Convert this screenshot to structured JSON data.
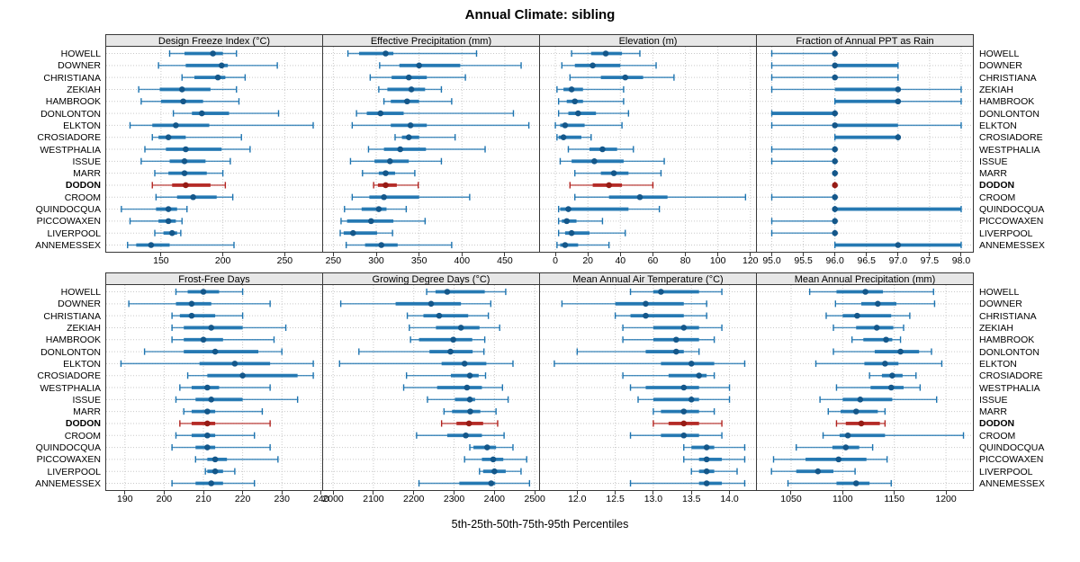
{
  "title": "Annual Climate: sibling",
  "caption": "5th-25th-50th-75th-95th Percentiles",
  "percentile_labels": [
    "5th",
    "25th",
    "50th",
    "75th",
    "95th"
  ],
  "sites": [
    "HOWELL",
    "DOWNER",
    "CHRISTIANA",
    "ZEKIAH",
    "HAMBROOK",
    "DONLONTON",
    "ELKTON",
    "CROSIADORE",
    "WESTPHALIA",
    "ISSUE",
    "MARR",
    "DODON",
    "CROOM",
    "QUINDOCQUA",
    "PICCOWAXEN",
    "LIVERPOOL",
    "ANNEMESSEX"
  ],
  "highlight_site": "DODON",
  "colors": {
    "series": "#1d74b0",
    "series_dot": "#14578a",
    "highlight": "#b2231f",
    "highlight_dot": "#961c16",
    "grid": "#c9c9c9",
    "strip_bg": "#e7e7e7",
    "panel_border": "#383838"
  },
  "chart_data": {
    "type": "dotplot-interval",
    "note": "Each row shows 5th-25th-50th-75th-95th percentiles; thin line = 5th-95th, thick line = 25th-75th, dot = median",
    "layout": {
      "rows": 2,
      "cols": 4,
      "row_labels_both_sides": true,
      "grid": "dotted"
    },
    "panels": [
      {
        "title": "Design Freeze Index (°C)",
        "xlim": [
          105,
          281
        ],
        "ticks": [
          150,
          200,
          250
        ],
        "tick_labels": [
          "150",
          "200",
          "250"
        ],
        "values": [
          [
            157,
            169,
            192,
            200,
            211
          ],
          [
            148,
            170,
            199,
            204,
            244
          ],
          [
            167,
            177,
            196,
            202,
            218
          ],
          [
            132,
            149,
            167,
            190,
            211
          ],
          [
            134,
            150,
            168,
            184,
            213
          ],
          [
            160,
            175,
            183,
            205,
            245
          ],
          [
            125,
            143,
            162,
            189,
            273
          ],
          [
            143,
            148,
            156,
            170,
            215
          ],
          [
            137,
            154,
            170,
            199,
            222
          ],
          [
            134,
            157,
            169,
            186,
            206
          ],
          [
            145,
            156,
            169,
            187,
            200
          ],
          [
            143,
            159,
            170,
            190,
            202
          ],
          [
            146,
            163,
            176,
            195,
            208
          ],
          [
            118,
            146,
            156,
            163,
            171
          ],
          [
            125,
            148,
            156,
            162,
            167
          ],
          [
            145,
            152,
            159,
            163,
            166
          ],
          [
            123,
            130,
            142,
            157,
            209
          ]
        ]
      },
      {
        "title": "Effective Precipitation (mm)",
        "xlim": [
          237,
          491
        ],
        "ticks": [
          250,
          300,
          350,
          400,
          450
        ],
        "tick_labels": [
          "250",
          "300",
          "350",
          "400",
          "450"
        ],
        "values": [
          [
            267,
            280,
            311,
            320,
            417
          ],
          [
            304,
            327,
            350,
            398,
            469
          ],
          [
            293,
            318,
            338,
            359,
            404
          ],
          [
            303,
            313,
            341,
            357,
            376
          ],
          [
            309,
            317,
            336,
            350,
            388
          ],
          [
            277,
            289,
            305,
            332,
            460
          ],
          [
            272,
            317,
            340,
            359,
            478
          ],
          [
            322,
            330,
            338,
            350,
            392
          ],
          [
            291,
            309,
            328,
            358,
            427
          ],
          [
            270,
            298,
            316,
            338,
            376
          ],
          [
            284,
            303,
            311,
            322,
            345
          ],
          [
            297,
            302,
            311,
            324,
            349
          ],
          [
            272,
            292,
            309,
            350,
            409
          ],
          [
            263,
            283,
            303,
            312,
            335
          ],
          [
            259,
            266,
            294,
            320,
            357
          ],
          [
            258,
            262,
            273,
            301,
            319
          ],
          [
            265,
            287,
            306,
            325,
            388
          ]
        ]
      },
      {
        "title": "Elevation (m)",
        "xlim": [
          -10,
          124
        ],
        "ticks": [
          0,
          20,
          40,
          60,
          80,
          100,
          120
        ],
        "tick_labels": [
          "0",
          "20",
          "40",
          "60",
          "80",
          "100",
          "120"
        ],
        "values": [
          [
            10,
            22,
            31,
            41,
            52
          ],
          [
            4,
            12,
            23,
            40,
            62
          ],
          [
            9,
            28,
            43,
            54,
            73
          ],
          [
            1,
            5,
            10,
            17,
            42
          ],
          [
            2,
            7,
            12,
            17,
            42
          ],
          [
            2,
            8,
            14,
            25,
            45
          ],
          [
            0,
            3,
            6,
            18,
            41
          ],
          [
            1,
            2,
            5,
            16,
            22
          ],
          [
            8,
            21,
            29,
            38,
            48
          ],
          [
            3,
            10,
            24,
            42,
            67
          ],
          [
            12,
            28,
            36,
            45,
            65
          ],
          [
            9,
            23,
            33,
            41,
            60
          ],
          [
            12,
            33,
            52,
            69,
            117
          ],
          [
            2,
            3,
            8,
            45,
            64
          ],
          [
            2,
            4,
            7,
            13,
            29
          ],
          [
            2,
            6,
            10,
            21,
            43
          ],
          [
            1,
            3,
            6,
            14,
            33
          ]
        ]
      },
      {
        "title": "Fraction of Annual PPT as Rain",
        "xlim": [
          94.75,
          98.2
        ],
        "ticks": [
          95.0,
          95.5,
          96.0,
          96.5,
          97.0,
          97.5,
          98.0
        ],
        "tick_labels": [
          "95.0",
          "95.5",
          "96.0",
          "96.5",
          "97.0",
          "97.5",
          "98.0"
        ],
        "values": [
          [
            95,
            96,
            96,
            96,
            96
          ],
          [
            95,
            96,
            96,
            97,
            97
          ],
          [
            95,
            96,
            96,
            96,
            97
          ],
          [
            95,
            96,
            97,
            97,
            98
          ],
          [
            96,
            96,
            97,
            97,
            98
          ],
          [
            95,
            95,
            96,
            96,
            96
          ],
          [
            95,
            96,
            96,
            97,
            98
          ],
          [
            96,
            96,
            97,
            97,
            97
          ],
          [
            95,
            96,
            96,
            96,
            96
          ],
          [
            95,
            96,
            96,
            96,
            96
          ],
          [
            96,
            96,
            96,
            96,
            96
          ],
          [
            96,
            96,
            96,
            96,
            96
          ],
          [
            95,
            96,
            96,
            96,
            96
          ],
          [
            96,
            96,
            96,
            98,
            98
          ],
          [
            95,
            96,
            96,
            96,
            96
          ],
          [
            95,
            96,
            96,
            96,
            96
          ],
          [
            96,
            96,
            97,
            98,
            98
          ]
        ]
      },
      {
        "title": "Frost-Free Days",
        "xlim": [
          185,
          240.5
        ],
        "ticks": [
          190,
          200,
          210,
          220,
          230,
          240
        ],
        "tick_labels": [
          "190",
          "200",
          "210",
          "220",
          "230",
          "240"
        ],
        "values": [
          [
            203,
            206,
            210,
            214,
            220
          ],
          [
            191,
            203,
            207,
            212,
            227
          ],
          [
            202,
            204,
            207,
            213,
            220
          ],
          [
            202,
            205,
            212,
            220,
            231
          ],
          [
            202,
            205,
            210,
            215,
            228
          ],
          [
            195,
            205,
            213,
            224,
            230
          ],
          [
            189,
            209,
            218,
            227,
            238
          ],
          [
            206,
            211,
            220,
            234,
            238
          ],
          [
            204,
            207,
            211,
            214,
            227
          ],
          [
            203,
            208,
            212,
            220,
            234
          ],
          [
            205,
            207,
            211,
            213,
            225
          ],
          [
            204,
            207,
            211,
            213,
            227
          ],
          [
            203,
            207,
            211,
            213,
            223
          ],
          [
            202,
            208,
            211,
            213,
            227
          ],
          [
            208,
            211,
            213,
            216,
            229
          ],
          [
            210.5,
            211,
            213,
            215,
            218
          ],
          [
            202,
            208,
            212,
            215,
            223
          ]
        ]
      },
      {
        "title": "Growing Degree Days (°C)",
        "xlim": [
          1973,
          2513
        ],
        "ticks": [
          2000,
          2100,
          2200,
          2300,
          2400,
          2500
        ],
        "tick_labels": [
          "2000",
          "2100",
          "2200",
          "2300",
          "2400",
          "2500"
        ],
        "values": [
          [
            2232,
            2254,
            2283,
            2376,
            2428
          ],
          [
            2019,
            2155,
            2243,
            2317,
            2391
          ],
          [
            2184,
            2224,
            2263,
            2335,
            2385
          ],
          [
            2189,
            2255,
            2317,
            2363,
            2413
          ],
          [
            2192,
            2213,
            2298,
            2345,
            2376
          ],
          [
            2064,
            2239,
            2291,
            2346,
            2374
          ],
          [
            2016,
            2269,
            2326,
            2380,
            2446
          ],
          [
            2182,
            2292,
            2339,
            2361,
            2378
          ],
          [
            2175,
            2258,
            2332,
            2369,
            2420
          ],
          [
            2234,
            2302,
            2339,
            2352,
            2434
          ],
          [
            2275,
            2295,
            2340,
            2365,
            2404
          ],
          [
            2269,
            2306,
            2337,
            2372,
            2408
          ],
          [
            2207,
            2283,
            2329,
            2369,
            2424
          ],
          [
            2339,
            2348,
            2382,
            2404,
            2446
          ],
          [
            2326,
            2369,
            2397,
            2422,
            2480
          ],
          [
            2363,
            2372,
            2400,
            2428,
            2466
          ],
          [
            2213,
            2313,
            2392,
            2402,
            2487
          ]
        ]
      },
      {
        "title": "Mean Annual Air Temperature (°C)",
        "xlim": [
          11.5,
          14.36
        ],
        "ticks": [
          12.0,
          12.5,
          13.0,
          13.5,
          14.0
        ],
        "tick_labels": [
          "12.0",
          "12.5",
          "13.0",
          "13.5",
          "14.0"
        ],
        "values": [
          [
            12.7,
            13.0,
            13.1,
            13.6,
            13.9
          ],
          [
            11.8,
            12.5,
            12.9,
            13.4,
            13.7
          ],
          [
            12.5,
            12.7,
            12.9,
            13.4,
            13.7
          ],
          [
            12.6,
            13.0,
            13.4,
            13.6,
            13.9
          ],
          [
            12.6,
            13.0,
            13.3,
            13.6,
            13.8
          ],
          [
            12.0,
            12.9,
            13.3,
            13.4,
            13.6
          ],
          [
            11.7,
            13.1,
            13.5,
            13.8,
            14.2
          ],
          [
            12.6,
            13.2,
            13.6,
            13.7,
            13.8
          ],
          [
            12.7,
            12.9,
            13.4,
            13.6,
            14.0
          ],
          [
            12.8,
            13.0,
            13.5,
            13.6,
            14.0
          ],
          [
            13.0,
            13.1,
            13.4,
            13.6,
            13.8
          ],
          [
            13.0,
            13.2,
            13.4,
            13.6,
            13.9
          ],
          [
            12.7,
            13.1,
            13.4,
            13.6,
            13.9
          ],
          [
            13.4,
            13.5,
            13.7,
            13.8,
            14.2
          ],
          [
            13.4,
            13.6,
            13.7,
            13.9,
            14.2
          ],
          [
            13.5,
            13.6,
            13.7,
            13.8,
            14.1
          ],
          [
            12.7,
            13.6,
            13.7,
            13.9,
            14.2
          ]
        ]
      },
      {
        "title": "Mean Annual Precipitation (mm)",
        "xlim": [
          1016,
          1227
        ],
        "ticks": [
          1050,
          1100,
          1150,
          1200
        ],
        "tick_labels": [
          "1050",
          "1100",
          "1150",
          "1200"
        ],
        "values": [
          [
            1068,
            1094,
            1122,
            1139,
            1188
          ],
          [
            1093,
            1118,
            1134,
            1152,
            1189
          ],
          [
            1084,
            1100,
            1114,
            1147,
            1165
          ],
          [
            1091,
            1113,
            1133,
            1149,
            1159
          ],
          [
            1109,
            1120,
            1142,
            1148,
            1156
          ],
          [
            1091,
            1131,
            1156,
            1174,
            1186
          ],
          [
            1074,
            1121,
            1141,
            1154,
            1196
          ],
          [
            1126,
            1138,
            1148,
            1158,
            1171
          ],
          [
            1094,
            1127,
            1147,
            1159,
            1175
          ],
          [
            1078,
            1100,
            1117,
            1148,
            1191
          ],
          [
            1086,
            1098,
            1113,
            1134,
            1141
          ],
          [
            1094,
            1103,
            1118,
            1136,
            1141
          ],
          [
            1081,
            1097,
            1105,
            1141,
            1217
          ],
          [
            1055,
            1090,
            1103,
            1116,
            1129
          ],
          [
            1033,
            1064,
            1096,
            1123,
            1143
          ],
          [
            1031,
            1055,
            1076,
            1091,
            1112
          ],
          [
            1047,
            1094,
            1113,
            1126,
            1147
          ]
        ]
      }
    ]
  }
}
